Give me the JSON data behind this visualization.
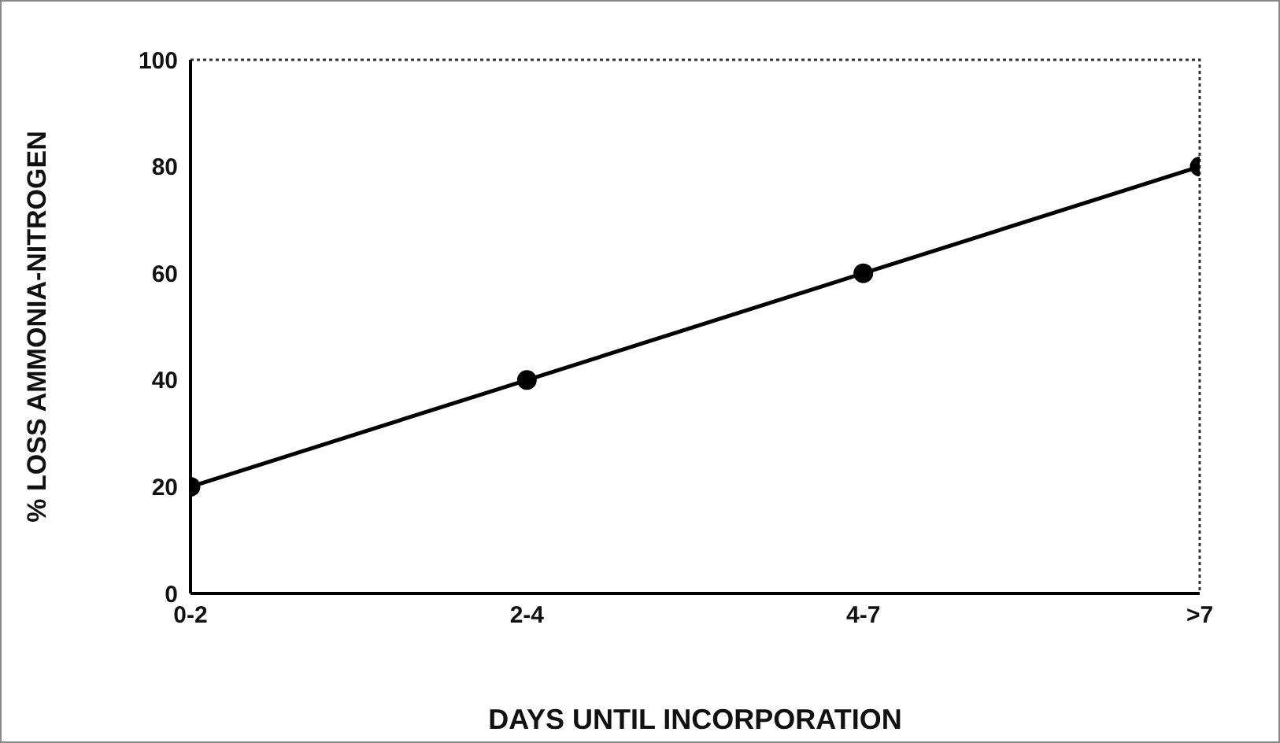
{
  "chart_data": {
    "type": "line",
    "xlabel": "DAYS UNTIL INCORPORATION",
    "ylabel": "% LOSS AMMONIA-NITROGEN",
    "categories": [
      "0-2",
      "2-4",
      "4-7",
      ">7"
    ],
    "series": [
      {
        "color": "#000000",
        "values": [
          20,
          40,
          60,
          80
        ]
      }
    ],
    "ylim": [
      0,
      100
    ],
    "yticks": [
      0,
      20,
      40,
      60,
      80,
      100
    ],
    "grid": false,
    "legend": false,
    "marker": "circle",
    "line_style": "solid"
  }
}
